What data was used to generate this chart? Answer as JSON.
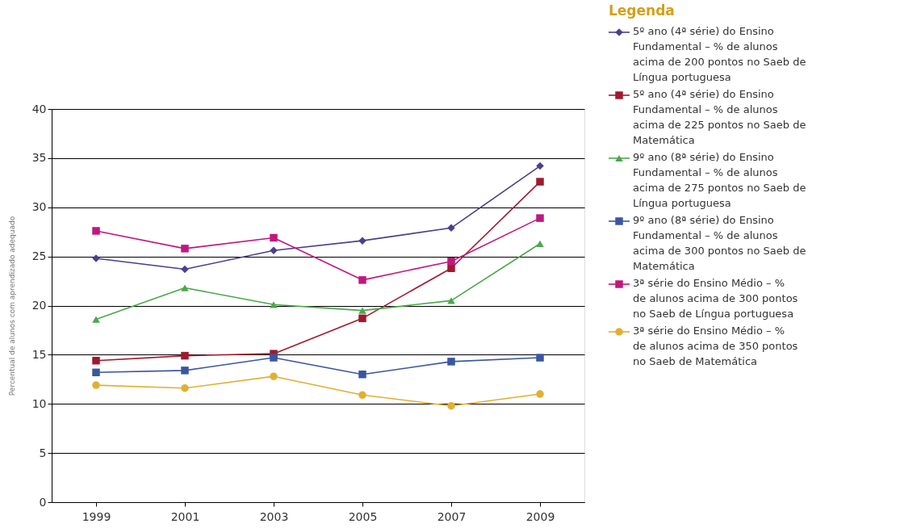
{
  "chart_data": {
    "type": "line",
    "ylabel": "Percentual de alunos com aprendizado adequado",
    "legend_title": "Legenda",
    "categories": [
      "1999",
      "2001",
      "2003",
      "2005",
      "2007",
      "2009"
    ],
    "series": [
      {
        "name": "5º ano (4ª série) do Ensino Fundamental – % de alunos acima de 200 pontos no Saeb de Língua portuguesa",
        "color": "#4b3f8f",
        "marker": "diamond",
        "values": [
          24.8,
          23.7,
          25.6,
          26.6,
          27.9,
          34.2
        ]
      },
      {
        "name": "5º ano (4ª série) do Ensino Fundamental – % de alunos acima de 225 pontos no Saeb de Matemática",
        "color": "#a0192e",
        "marker": "square",
        "values": [
          14.4,
          14.9,
          15.1,
          18.7,
          23.8,
          32.6
        ]
      },
      {
        "name": "9º ano (8ª série) do Ensino Fundamental – % de alunos acima de 275 pontos no Saeb de Língua portuguesa",
        "color": "#4aa84a",
        "marker": "triangle",
        "values": [
          18.6,
          21.8,
          20.1,
          19.5,
          20.5,
          26.3
        ]
      },
      {
        "name": "9º ano (8ª série) do Ensino Fundamental – % de alunos acima de 300 pontos no Saeb de Matemática",
        "color": "#3a56a0",
        "marker": "square",
        "values": [
          13.2,
          13.4,
          14.7,
          13.0,
          14.3,
          14.7
        ]
      },
      {
        "name": "3ª série do Ensino Médio – % de alunos acima de 300 pontos no Saeb de Língua portuguesa",
        "color": "#c0187e",
        "marker": "square",
        "values": [
          27.6,
          25.8,
          26.9,
          22.6,
          24.5,
          28.9
        ]
      },
      {
        "name": "3ª série do Ensino Médio – % de alunos acima de 350 pontos no Saeb de Matemática",
        "color": "#e0b030",
        "marker": "circle",
        "values": [
          11.9,
          11.6,
          12.8,
          10.9,
          9.8,
          11.0
        ]
      }
    ],
    "ylim": [
      0,
      40
    ],
    "yticks": [
      0,
      5,
      10,
      15,
      20,
      25,
      30,
      35,
      40
    ],
    "grid": "y",
    "legend": "right",
    "line_style": "solid"
  }
}
